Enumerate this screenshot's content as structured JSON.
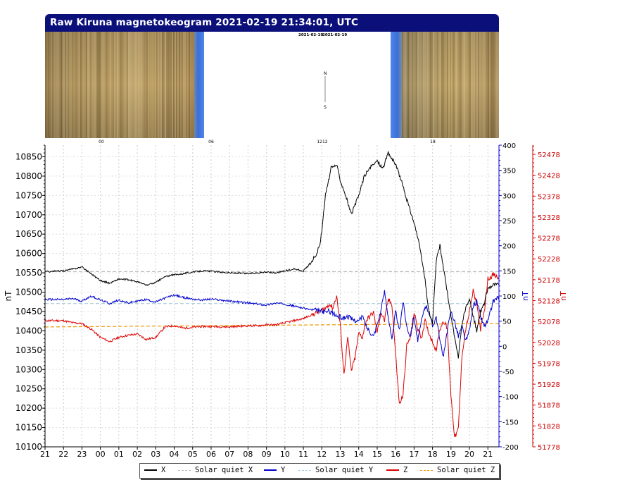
{
  "title": "Raw Kiruna magnetokeogram 2021-02-19 21:34:01, UTC",
  "keogram": {
    "date_labels": [
      "2021-02-19",
      "2021-02-19"
    ],
    "north_label": "N",
    "south_label": "S",
    "hour_labels": [
      "00",
      "06",
      "1212",
      "18"
    ]
  },
  "colors": {
    "X": "#000000",
    "Y": "#0000cc",
    "Z": "#dd0000",
    "quiet_X": "#bbbbbb",
    "quiet_Y": "#aaccdd",
    "quiet_Z": "#ee9900",
    "axis_right_Y": "#0000cc",
    "axis_right_Z": "#cc0000",
    "keogram_sand": "#b89a5e",
    "keogram_blue": "#3a6fd8",
    "title_bar": "#0b0f7a"
  },
  "chart_data": {
    "type": "line",
    "x_tick_labels": [
      "21",
      "22",
      "23",
      "00",
      "01",
      "02",
      "03",
      "04",
      "05",
      "06",
      "07",
      "08",
      "09",
      "10",
      "11",
      "12",
      "13",
      "14",
      "15",
      "16",
      "17",
      "18",
      "19",
      "20",
      "21"
    ],
    "x_hours_since_start": [
      0,
      1,
      2,
      3,
      4,
      5,
      6,
      7,
      8,
      9,
      10,
      11,
      12,
      13,
      14,
      15,
      16,
      17,
      18,
      19,
      20,
      21,
      22,
      23,
      24
    ],
    "xlim": [
      0,
      24.6
    ],
    "grid": true,
    "axes": {
      "left": {
        "label": "nT",
        "ylim": [
          10100,
          10880
        ],
        "ticks": [
          10100,
          10150,
          10200,
          10250,
          10300,
          10350,
          10400,
          10450,
          10500,
          10550,
          10600,
          10650,
          10700,
          10750,
          10800,
          10850
        ]
      },
      "right1": {
        "label": "nT",
        "ylim": [
          -200,
          400
        ],
        "ticks": [
          -200,
          -150,
          -100,
          -50,
          0,
          50,
          100,
          150,
          200,
          250,
          300,
          350,
          400
        ]
      },
      "right2": {
        "label": "nT",
        "ylim": [
          51778,
          52500
        ],
        "ticks": [
          51778,
          51828,
          51878,
          51928,
          51978,
          52028,
          52078,
          52128,
          52178,
          52228,
          52278,
          52328,
          52378,
          52428,
          52478
        ]
      }
    },
    "series": [
      {
        "name": "X",
        "axis": "left",
        "style": "solid",
        "x": [
          0,
          1,
          1.5,
          2,
          2.5,
          3,
          3.5,
          4,
          4.5,
          5,
          5.5,
          6,
          6.5,
          7,
          7.5,
          8,
          8.5,
          9,
          10,
          11,
          12,
          12.5,
          13,
          13.5,
          14,
          14.3,
          14.6,
          14.9,
          15,
          15.2,
          15.5,
          15.8,
          16,
          16.3,
          16.6,
          17,
          17.3,
          17.6,
          18,
          18.3,
          18.6,
          19,
          19.3,
          19.6,
          20,
          20.2,
          20.4,
          20.6,
          20.8,
          21,
          21.2,
          21.4,
          21.6,
          21.8,
          22,
          22.2,
          22.4,
          22.6,
          22.8,
          23,
          23.2,
          23.4,
          23.6,
          23.8,
          24,
          24.3,
          24.6
        ],
        "y": [
          10553,
          10555,
          10560,
          10565,
          10548,
          10530,
          10523,
          10534,
          10532,
          10527,
          10518,
          10525,
          10540,
          10545,
          10548,
          10552,
          10555,
          10554,
          10550,
          10548,
          10552,
          10550,
          10555,
          10560,
          10555,
          10570,
          10590,
          10620,
          10660,
          10750,
          10820,
          10830,
          10790,
          10750,
          10700,
          10750,
          10800,
          10820,
          10840,
          10820,
          10860,
          10830,
          10790,
          10740,
          10680,
          10640,
          10590,
          10530,
          10450,
          10420,
          10580,
          10620,
          10560,
          10500,
          10440,
          10380,
          10330,
          10420,
          10460,
          10480,
          10440,
          10400,
          10450,
          10470,
          10510,
          10520,
          10520
        ]
      },
      {
        "name": "Solar quiet X",
        "axis": "left",
        "style": "dashed",
        "x": [
          0,
          24.6
        ],
        "y": [
          10553,
          10553
        ]
      },
      {
        "name": "Y",
        "axis": "right1",
        "style": "solid",
        "x": [
          0,
          1,
          1.5,
          2,
          2.5,
          3,
          3.5,
          4,
          4.5,
          5,
          5.5,
          6,
          6.5,
          7,
          7.5,
          8,
          8.5,
          9,
          10,
          11,
          11.5,
          12,
          12.5,
          13,
          13.5,
          14,
          14.5,
          15,
          15.2,
          15.4,
          15.6,
          15.8,
          16,
          16.2,
          16.4,
          16.6,
          16.8,
          17,
          17.2,
          17.4,
          17.6,
          17.8,
          18,
          18.2,
          18.4,
          18.6,
          18.8,
          19,
          19.2,
          19.4,
          19.6,
          19.8,
          20,
          20.2,
          20.4,
          20.6,
          20.8,
          21,
          21.2,
          21.4,
          21.6,
          21.8,
          22,
          22.2,
          22.4,
          22.6,
          22.8,
          23,
          23.2,
          23.4,
          23.6,
          23.8,
          24,
          24.3,
          24.6
        ],
        "y": [
          93,
          93,
          95,
          90,
          100,
          92,
          85,
          92,
          86,
          90,
          93,
          88,
          96,
          102,
          97,
          94,
          92,
          94,
          90,
          86,
          84,
          82,
          86,
          84,
          80,
          76,
          72,
          70,
          68,
          70,
          66,
          60,
          58,
          56,
          60,
          54,
          52,
          50,
          60,
          40,
          30,
          20,
          44,
          70,
          110,
          60,
          10,
          70,
          30,
          90,
          40,
          20,
          60,
          10,
          50,
          80,
          70,
          40,
          60,
          10,
          -20,
          30,
          70,
          50,
          20,
          40,
          10,
          30,
          80,
          90,
          60,
          40,
          50,
          90,
          100
        ]
      },
      {
        "name": "Solar quiet Y",
        "axis": "right1",
        "style": "dashed",
        "x": [
          0,
          24.6
        ],
        "y": [
          85,
          85
        ]
      },
      {
        "name": "Z",
        "axis": "right2",
        "style": "solid",
        "x": [
          0,
          1,
          1.5,
          2,
          2.5,
          3,
          3.5,
          4,
          4.5,
          5,
          5.5,
          6,
          6.5,
          7,
          7.5,
          8,
          8.5,
          9,
          10,
          11,
          11.5,
          12,
          12.5,
          13,
          13.5,
          14,
          14.5,
          15,
          15.2,
          15.4,
          15.6,
          15.8,
          16,
          16.2,
          16.4,
          16.6,
          16.8,
          17,
          17.2,
          17.4,
          17.6,
          17.8,
          18,
          18.2,
          18.4,
          18.6,
          18.8,
          19,
          19.2,
          19.4,
          19.6,
          19.8,
          20,
          20.2,
          20.4,
          20.6,
          20.8,
          21,
          21.2,
          21.4,
          21.6,
          21.8,
          22,
          22.2,
          22.4,
          22.6,
          22.8,
          23,
          23.2,
          23.4,
          23.6,
          23.8,
          24,
          24.3,
          24.6
        ],
        "y": [
          52080,
          52080,
          52075,
          52073,
          52060,
          52040,
          52030,
          52040,
          52045,
          52048,
          52035,
          52040,
          52065,
          52068,
          52062,
          52064,
          52066,
          52066,
          52065,
          52068,
          52068,
          52070,
          52070,
          52075,
          52080,
          52085,
          52095,
          52105,
          52110,
          52120,
          52110,
          52140,
          52070,
          51950,
          52040,
          51960,
          51990,
          52050,
          52040,
          52080,
          52090,
          52100,
          52050,
          52100,
          52080,
          52130,
          52120,
          52000,
          51880,
          51900,
          52020,
          52040,
          52100,
          52060,
          52040,
          52080,
          52050,
          52030,
          52010,
          52060,
          52080,
          52060,
          51900,
          51800,
          51820,
          52000,
          52060,
          52100,
          52150,
          52120,
          52060,
          52100,
          52180,
          52190,
          52180
        ]
      },
      {
        "name": "Solar quiet Z",
        "axis": "right2",
        "style": "dashed",
        "x": [
          0,
          3,
          6,
          9,
          12,
          15,
          18,
          21,
          24.6
        ],
        "y": [
          52065,
          52066,
          52067,
          52068,
          52069,
          52070,
          52071,
          52072,
          52073
        ]
      }
    ]
  },
  "legend": [
    {
      "label": "X",
      "color_key": "X",
      "style": "solid"
    },
    {
      "label": "Solar quiet X",
      "color_key": "quiet_X",
      "style": "dashed"
    },
    {
      "label": "Y",
      "color_key": "Y",
      "style": "solid"
    },
    {
      "label": "Solar quiet Y",
      "color_key": "quiet_Y",
      "style": "dashed"
    },
    {
      "label": "Z",
      "color_key": "Z",
      "style": "solid"
    },
    {
      "label": "Solar quiet Z",
      "color_key": "quiet_Z",
      "style": "dashed"
    }
  ]
}
